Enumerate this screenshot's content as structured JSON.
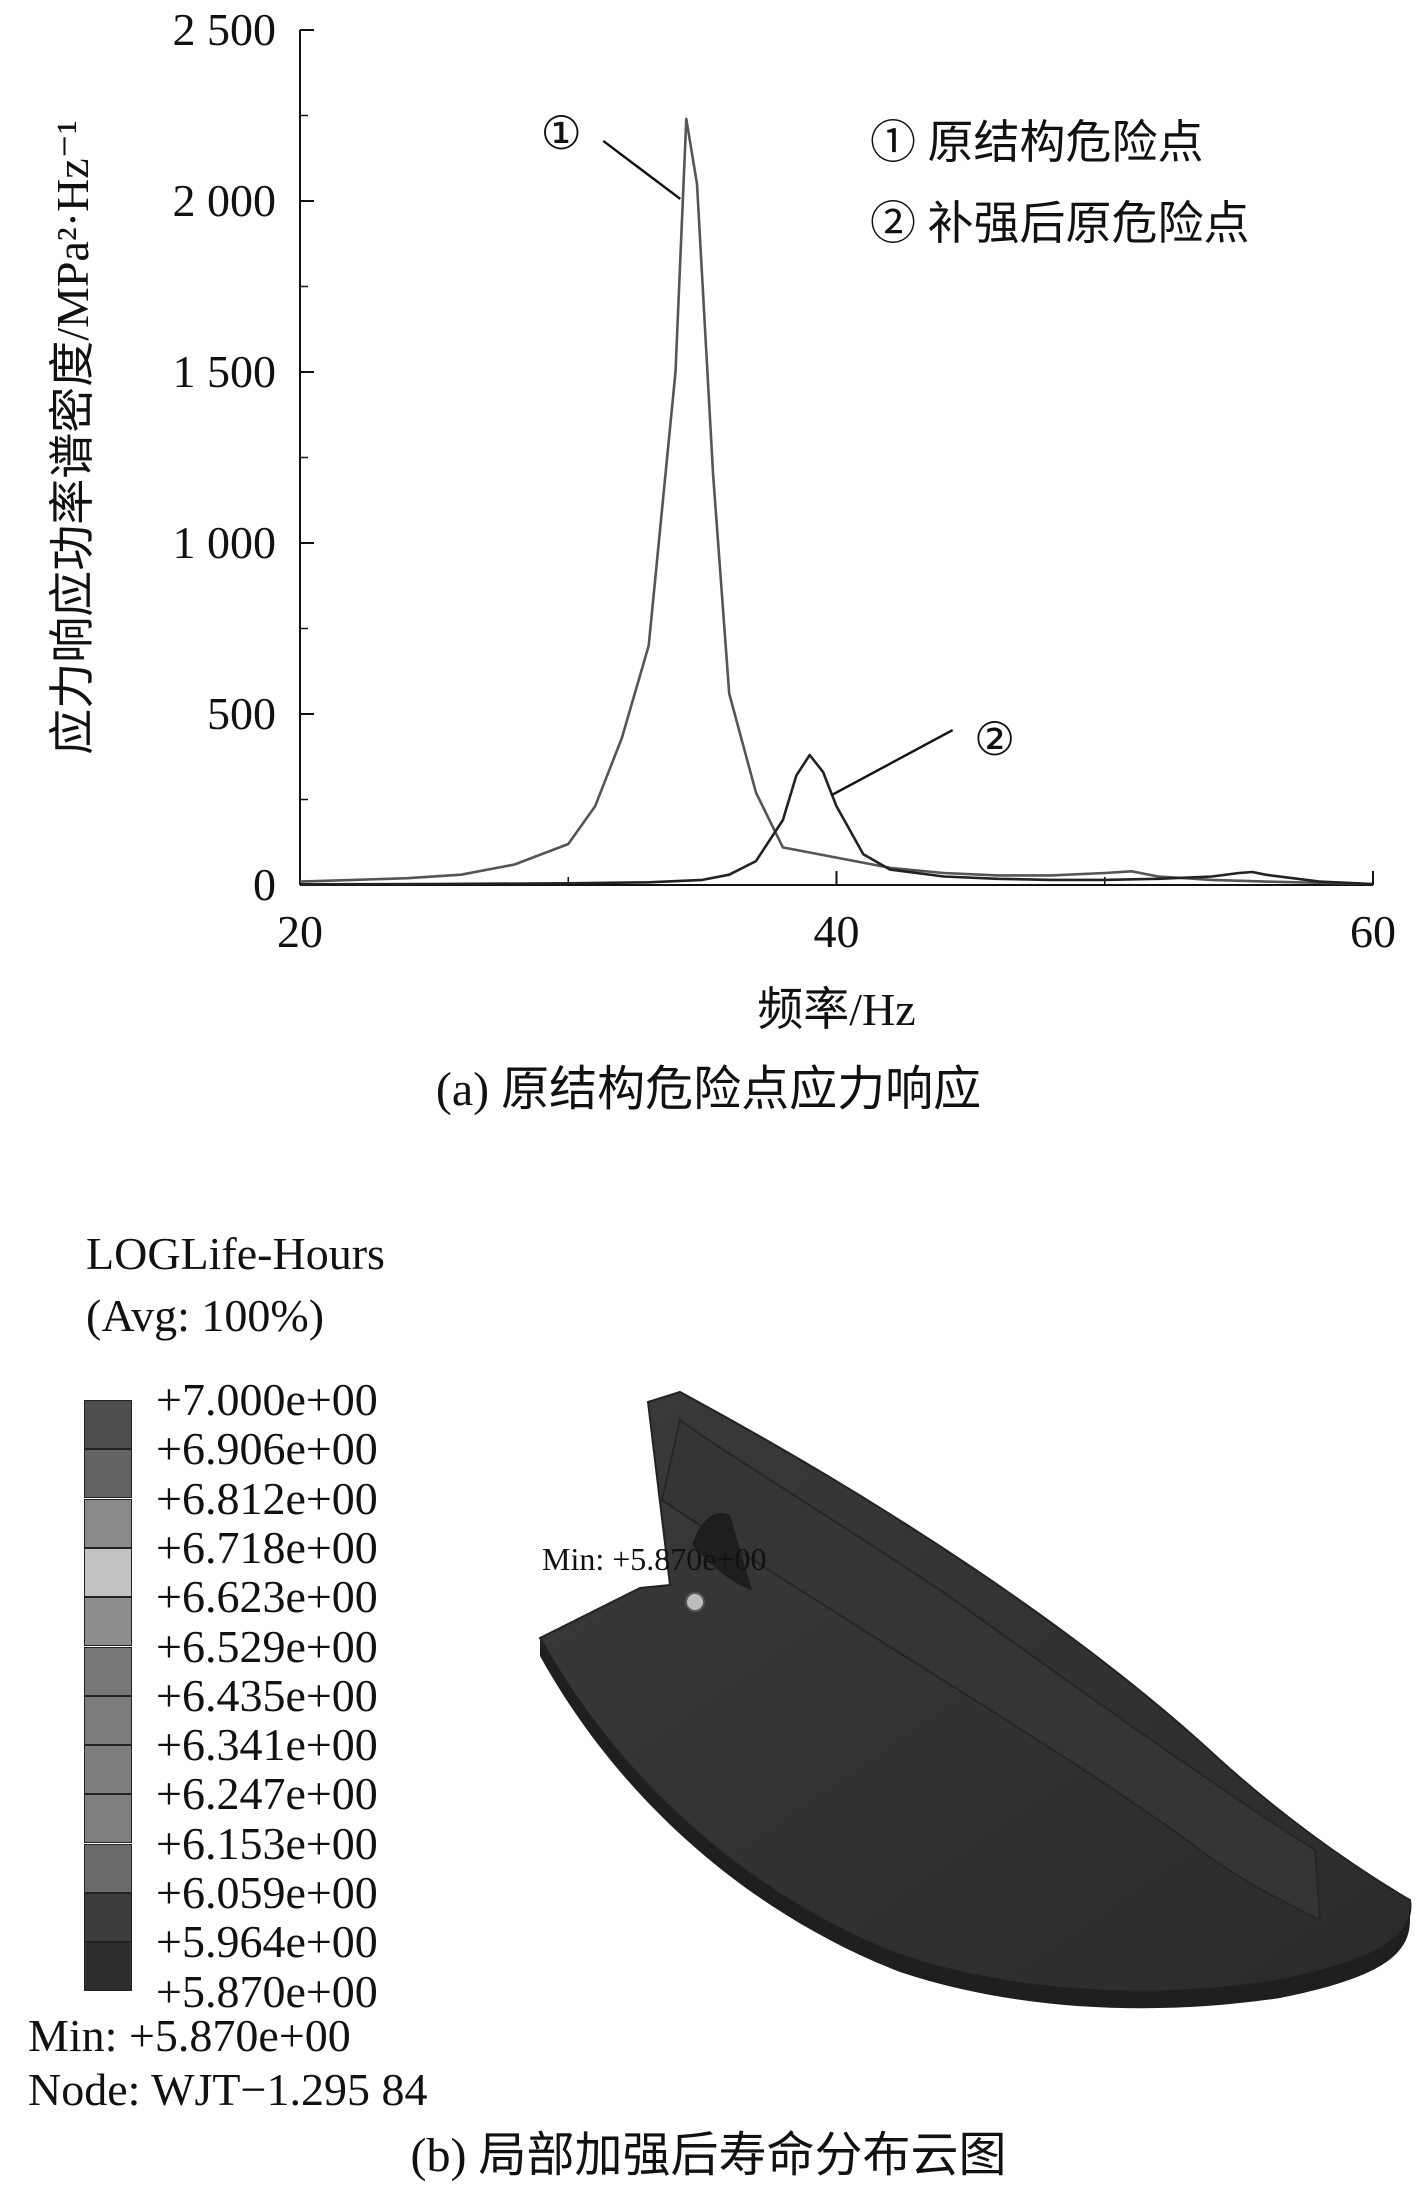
{
  "chart_data": {
    "type": "line",
    "title": "",
    "xlabel": "频率/Hz",
    "ylabel": "应力响应功率谱密度/MPa²·Hz⁻¹",
    "xlim": [
      20,
      60
    ],
    "ylim": [
      0,
      2500
    ],
    "xticks": [
      "20",
      "40",
      "60"
    ],
    "yticks": [
      "0",
      "500",
      "1 000",
      "1 500",
      "2 000",
      "2 500"
    ],
    "grid": false,
    "legend_position": "top-right",
    "legend": [
      "① 原结构危险点",
      "② 补强后原危险点"
    ],
    "series": [
      {
        "name": "① 原结构危险点",
        "annotation": "①",
        "color": "#555555",
        "x": [
          20,
          22,
          24,
          26,
          28,
          30,
          31,
          32,
          33,
          34,
          34.4,
          34.8,
          35.4,
          36,
          37,
          38,
          40,
          42,
          44,
          46,
          48,
          50,
          51,
          52,
          54,
          56,
          60
        ],
        "y": [
          10,
          15,
          20,
          30,
          60,
          120,
          230,
          430,
          700,
          1500,
          2240,
          2050,
          1200,
          560,
          270,
          110,
          80,
          50,
          35,
          28,
          28,
          35,
          40,
          25,
          15,
          10,
          3
        ]
      },
      {
        "name": "② 补强后原危险点",
        "annotation": "②",
        "color": "#222222",
        "x": [
          20,
          25,
          30,
          33,
          35,
          36,
          37,
          38,
          38.5,
          39,
          39.5,
          40,
          41,
          42,
          44,
          46,
          48,
          50,
          52,
          54,
          55,
          55.5,
          56,
          58,
          60
        ],
        "y": [
          2,
          3,
          5,
          8,
          15,
          30,
          70,
          190,
          320,
          380,
          330,
          230,
          90,
          45,
          25,
          18,
          15,
          15,
          18,
          25,
          35,
          38,
          30,
          10,
          3
        ]
      }
    ]
  },
  "captions": {
    "a": "(a) 原结构危险点应力响应",
    "b": "(b) 局部加强后寿命分布云图"
  },
  "contour": {
    "title_line1": "LOGLife-Hours",
    "title_line2": "(Avg: 100%)",
    "legend_values": [
      "+7.000e+00",
      "+6.906e+00",
      "+6.812e+00",
      "+6.718e+00",
      "+6.623e+00",
      "+6.529e+00",
      "+6.435e+00",
      "+6.341e+00",
      "+6.247e+00",
      "+6.153e+00",
      "+6.059e+00",
      "+5.964e+00",
      "+5.870e+00"
    ],
    "legend_colors": [
      "#4e4e4e",
      "#636363",
      "#8a8a8a",
      "#c2c2c2",
      "#8d8d8d",
      "#777777",
      "#7b7b7b",
      "#7e7e7e",
      "#7f7f7f",
      "#6a6a6a",
      "#3c3c3c",
      "#2e2e2e",
      "#232323"
    ],
    "min_line": "Min: +5.870e+00",
    "node_line": "Node: WJT−1.295 84",
    "model_min_label": "Min: +5.870e+00"
  }
}
